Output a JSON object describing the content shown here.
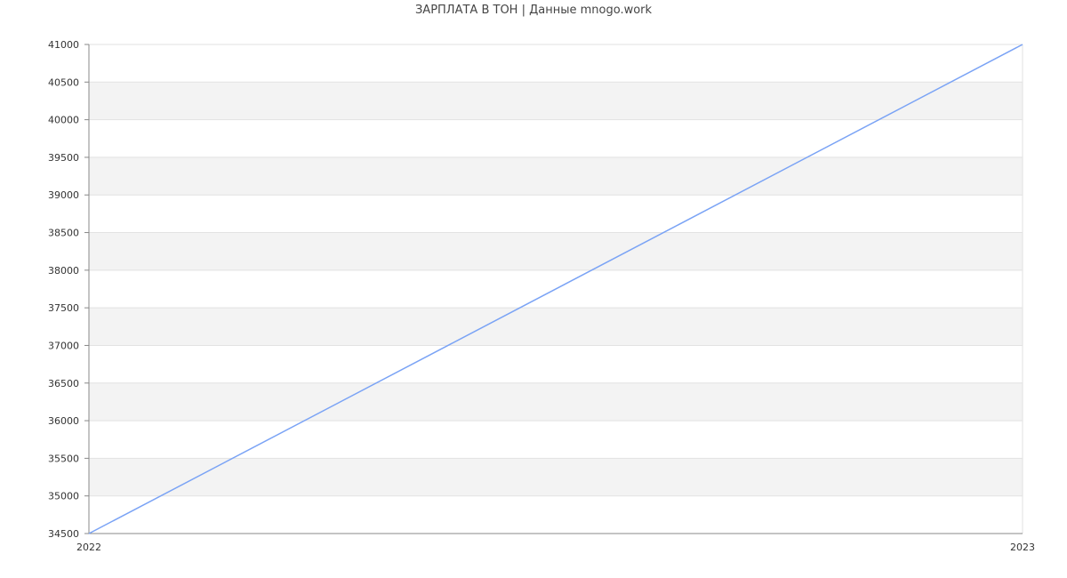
{
  "chart_data": {
    "type": "line",
    "title": "ЗАРПЛАТА В ТОН | Данные mnogo.work",
    "x": [
      "2022",
      "2023"
    ],
    "series": [
      {
        "values": [
          34500,
          41000
        ],
        "color": "#7aa3f5"
      }
    ],
    "ylim": [
      34500,
      41000
    ],
    "yticks": [
      34500,
      35000,
      35500,
      36000,
      36500,
      37000,
      37500,
      38000,
      38500,
      39000,
      39500,
      40000,
      40500,
      41000
    ],
    "grid": true,
    "band_color": "#f3f3f3"
  }
}
